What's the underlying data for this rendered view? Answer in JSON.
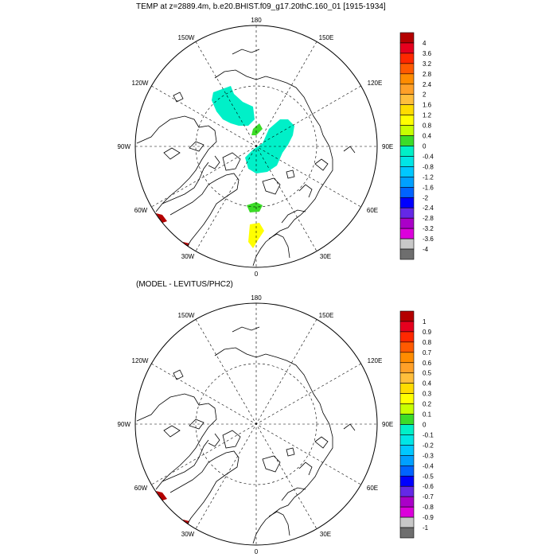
{
  "panels": [
    {
      "title": "TEMP at z=2889.4m, b.e20.BHIST.f09_g17.20thC.160_01 [1915-1934]",
      "colorbar": {
        "labels": [
          "4",
          "3.6",
          "3.2",
          "2.8",
          "2.4",
          "2",
          "1.6",
          "1.2",
          "0.8",
          "0.4",
          "0",
          "-0.4",
          "-0.8",
          "-1.2",
          "-1.6",
          "-2",
          "-2.4",
          "-2.8",
          "-3.2",
          "-3.6",
          "-4"
        ],
        "colors": [
          "#b40000",
          "#e6001e",
          "#ff2800",
          "#ff5a00",
          "#ff8c00",
          "#ffa028",
          "#ffbe3c",
          "#ffdc00",
          "#ffff00",
          "#c8ff00",
          "#3cdc28",
          "#00f0c8",
          "#00e6e6",
          "#00c8ff",
          "#00a0ff",
          "#0064ff",
          "#0000ff",
          "#6428e6",
          "#aa00c8",
          "#dc00dc",
          "#c8c8c8",
          "#6e6e6e"
        ]
      }
    },
    {
      "title": "(MODEL - LEVITUS/PHC2)",
      "colorbar": {
        "labels": [
          "1",
          "0.9",
          "0.8",
          "0.7",
          "0.6",
          "0.5",
          "0.4",
          "0.3",
          "0.2",
          "0.1",
          "0",
          "-0.1",
          "-0.2",
          "-0.3",
          "-0.4",
          "-0.5",
          "-0.6",
          "-0.7",
          "-0.8",
          "-0.9",
          "-1"
        ],
        "colors": [
          "#b40000",
          "#e6001e",
          "#ff2800",
          "#ff5a00",
          "#ff8c00",
          "#ffa028",
          "#ffbe3c",
          "#ffdc00",
          "#ffff00",
          "#c8ff00",
          "#3cdc28",
          "#00f0c8",
          "#00e6e6",
          "#00c8ff",
          "#00a0ff",
          "#0064ff",
          "#0000ff",
          "#6428e6",
          "#aa00c8",
          "#dc00dc",
          "#c8c8c8",
          "#6e6e6e"
        ]
      }
    }
  ],
  "lon_labels": {
    "top": "180",
    "bottom": "0",
    "left": "90W",
    "right": "90E",
    "w150": "150W",
    "e150": "150E",
    "w120": "120W",
    "e120": "120E",
    "w60": "60W",
    "e60": "60E",
    "w30": "30W",
    "e30": "30E"
  },
  "anomaly_colors": {
    "cyan": "#00f0c8",
    "green": "#3cdc28",
    "yellow": "#ffff00",
    "red": "#b40000"
  }
}
